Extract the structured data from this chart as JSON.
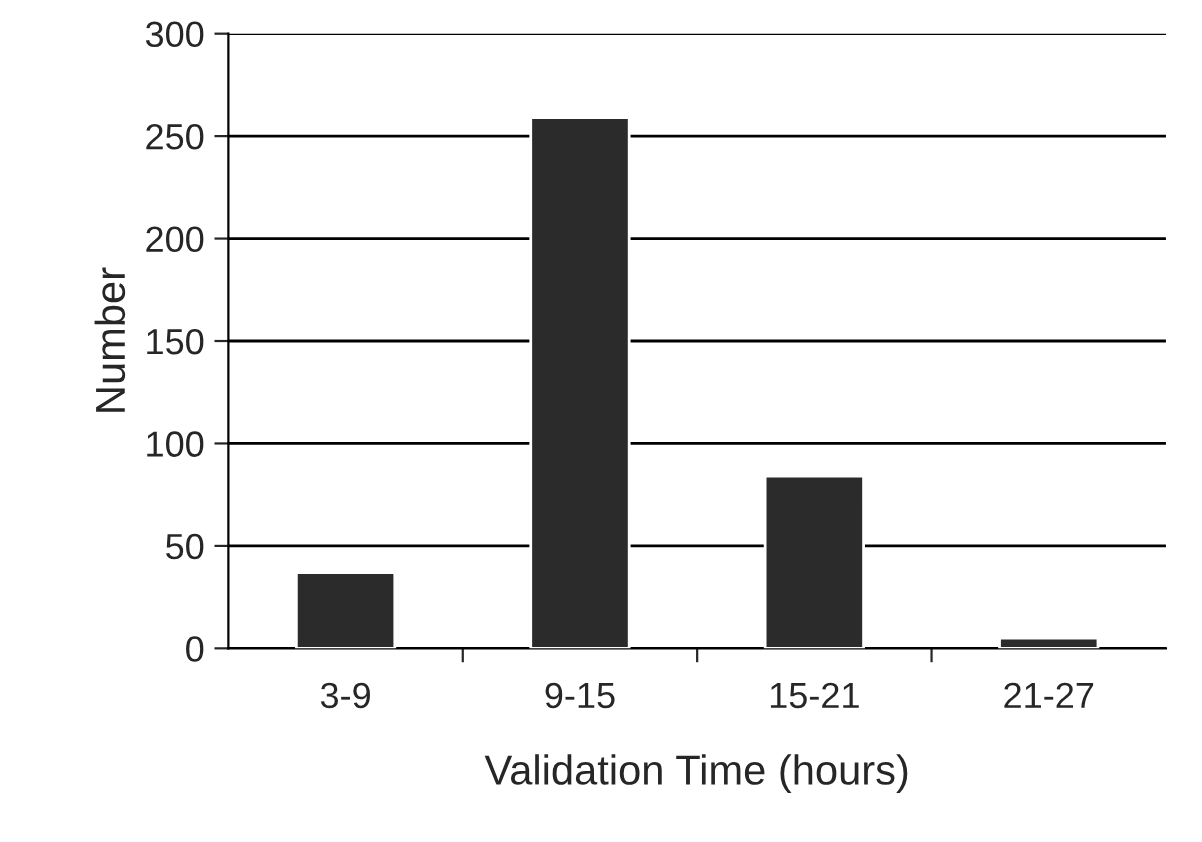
{
  "chart_data": {
    "type": "bar",
    "xlabel": "Validation Time (hours)",
    "ylabel": "Number",
    "categories": [
      "3-9",
      "9-15",
      "15-21",
      "21-27"
    ],
    "values": [
      37,
      259,
      84,
      5
    ],
    "color": "#2b2b2b",
    "ylim": [
      0,
      300
    ],
    "yticks": [
      0,
      50,
      100,
      150,
      200,
      250,
      300
    ],
    "grid": "y"
  }
}
